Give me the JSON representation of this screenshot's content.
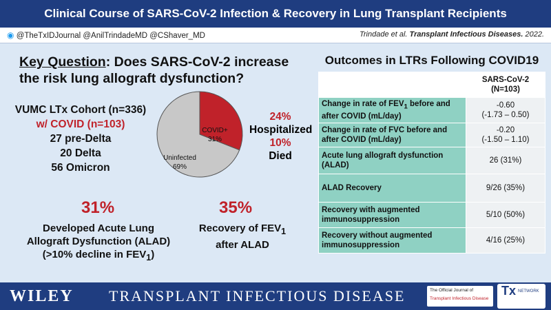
{
  "header": {
    "title": "Clinical Course of SARS-CoV-2 Infection & Recovery in Lung Transplant Recipients",
    "social": "@TheTxIDJournal @AnilTrindadeMD @CShaver_MD",
    "citation_authors": "Trindade et al.",
    "citation_journal": "Transplant Infectious Diseases.",
    "citation_year": "2022."
  },
  "key_question": {
    "label": "Key Question",
    "text": ": Does SARS-CoV-2 increase the risk lung allograft dysfunction?"
  },
  "cohort": {
    "title": "VUMC LTx Cohort (n=336)",
    "covid": "w/ COVID (n=103)",
    "pre_delta": "27 pre-Delta",
    "delta": "20 Delta",
    "omicron": "56 Omicron"
  },
  "pie": {
    "slices": [
      {
        "label": "COVID+",
        "pct_label": "31%",
        "value": 31,
        "color": "#c0222a"
      },
      {
        "label": "Uninfected",
        "pct_label": "69%",
        "value": 69,
        "color": "#c8c8c8"
      }
    ]
  },
  "hospital": {
    "hosp_pct": "24%",
    "hosp_label": "Hospitalized",
    "died_pct": "10%",
    "died_label": "Died"
  },
  "alad": {
    "pct": "31%",
    "line1": "Developed Acute Lung",
    "line2": "Allograft Dysfunction (ALAD)",
    "line3": "(>10% decline in FEV",
    "line3_sub": "1",
    "line3_end": ")"
  },
  "recovery": {
    "pct": "35%",
    "line1": "Recovery of FEV",
    "line1_sub": "1",
    "line2": "after ALAD"
  },
  "table": {
    "title": "Outcomes in LTRs Following COVID19",
    "header_line1": "SARS-CoV-2",
    "header_line2": "(N=103)",
    "rows": [
      {
        "label_a": "Change in rate of FEV",
        "label_sub": "1",
        "label_b": " before and after COVID (mL/day)",
        "value_1": "-0.60",
        "value_2": "(-1.73 – 0.50)"
      },
      {
        "label_a": "Change in rate of FVC before and after COVID (mL/day)",
        "value_1": "-0.20",
        "value_2": "(-1.50 – 1.10)"
      },
      {
        "label_a": "Acute lung allograft dysfunction (ALAD)",
        "value_1": "26 (31%)"
      },
      {
        "label_a": "ALAD Recovery",
        "value_1": "9/26 (35%)"
      },
      {
        "label_a": "Recovery with augmented immunosuppression",
        "value_1": "5/10 (50%)"
      },
      {
        "label_a": "Recovery without augmented immunosuppression",
        "value_1": "4/16 (25%)"
      }
    ]
  },
  "footer": {
    "publisher": "WILEY",
    "journal": "TRANSPLANT INFECTIOUS DISEASE",
    "official_1": "The Official Journal of",
    "official_2": "Transplant Infectious Disease",
    "tx_mark": "Tx",
    "tx_network": "NETWORK"
  }
}
